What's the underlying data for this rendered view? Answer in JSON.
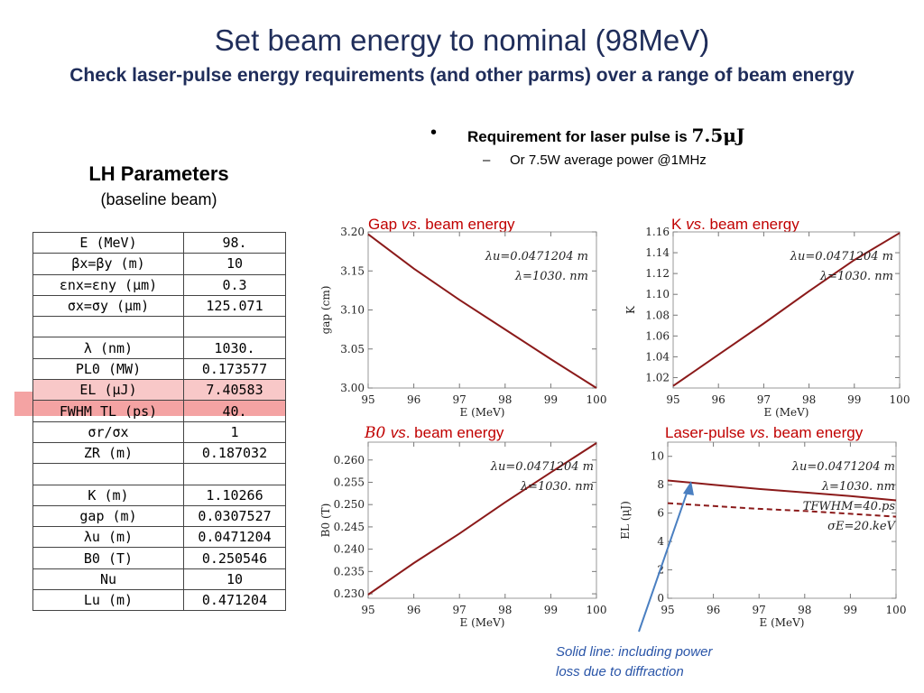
{
  "title": "Set beam energy to nominal (98MeV)",
  "subtitle": "Check laser-pulse energy requirements   (and other parms)  over a range of beam energy",
  "lh_parameters": {
    "title": "LH Parameters",
    "subtitle": "(baseline beam)",
    "rows": [
      {
        "param": "E (MeV)",
        "value": "98."
      },
      {
        "param": "βx=βy  (m)",
        "value": "10"
      },
      {
        "param": "εnx=εny  (μm)",
        "value": "0.3"
      },
      {
        "param": "σx=σy  (μm)",
        "value": "125.071"
      },
      {
        "param": "",
        "value": ""
      },
      {
        "param": "λ (nm)",
        "value": "1030."
      },
      {
        "param": "PL0 (MW)",
        "value": "0.173577"
      },
      {
        "param": "EL (μJ)",
        "value": "7.40583"
      },
      {
        "param": "FWHM TL (ps)",
        "value": "40."
      },
      {
        "param": "σr/σx",
        "value": "1"
      },
      {
        "param": "ZR (m)",
        "value": "0.187032"
      },
      {
        "param": "",
        "value": ""
      },
      {
        "param": "K (m)",
        "value": "1.10266"
      },
      {
        "param": "gap (m)",
        "value": "0.0307527"
      },
      {
        "param": "λu (m)",
        "value": "0.0471204"
      },
      {
        "param": "B0 (T)",
        "value": "0.250546"
      },
      {
        "param": "Nu",
        "value": "10"
      },
      {
        "param": "Lu (m)",
        "value": "0.471204"
      }
    ]
  },
  "bullet": {
    "main": "Requirement for laser pulse is ",
    "value": "7.5μJ",
    "sub_dash": "–",
    "sub": "Or 7.5W average power @1MHz"
  },
  "note": {
    "line1": "Solid line:  including power",
    "line2": "loss due to diffraction"
  },
  "colors": {
    "title": "#1f2d5a",
    "curve": "#8b1a1a",
    "chart_title": "#c00000",
    "arrow": "#4a7fc1",
    "highlight": "#f4a3a3"
  },
  "chart_data": [
    {
      "type": "line",
      "title_pre": "Gap ",
      "title_vs": "vs",
      "title_post": ". beam energy",
      "xlabel": "E (MeV)",
      "ylabel": "gap  (cm)",
      "xlim": [
        95,
        100
      ],
      "ylim": [
        3.0,
        3.2
      ],
      "xticks": [
        "95",
        "96",
        "97",
        "98",
        "99",
        "100"
      ],
      "yticks": [
        "3.00",
        "3.05",
        "3.10",
        "3.15",
        "3.20"
      ],
      "annotations": [
        "λu=0.0471204 m",
        "λ=1030. nm"
      ],
      "series": [
        {
          "style": "solid",
          "x": [
            95,
            96,
            97,
            98,
            99,
            100
          ],
          "y": [
            3.197,
            3.153,
            3.113,
            3.075,
            3.037,
            3.0
          ]
        }
      ]
    },
    {
      "type": "line",
      "title_pre": "K ",
      "title_vs": "vs",
      "title_post": ". beam energy",
      "xlabel": "E (MeV)",
      "ylabel": "K",
      "xlim": [
        95,
        100
      ],
      "ylim": [
        1.01,
        1.16
      ],
      "xticks": [
        "95",
        "96",
        "97",
        "98",
        "99",
        "100"
      ],
      "yticks": [
        "1.02",
        "1.04",
        "1.06",
        "1.08",
        "1.10",
        "1.12",
        "1.14",
        "1.16"
      ],
      "annotations": [
        "λu=0.0471204 m",
        "λ=1030. nm"
      ],
      "series": [
        {
          "style": "solid",
          "x": [
            95,
            96,
            97,
            98,
            99,
            100
          ],
          "y": [
            1.012,
            1.042,
            1.072,
            1.103,
            1.133,
            1.159
          ]
        }
      ]
    },
    {
      "type": "line",
      "title_pre": "B0 ",
      "title_vs": "vs",
      "title_post": ". beam energy",
      "xlabel": "E (MeV)",
      "ylabel": "B0 (T)",
      "xlim": [
        95,
        100
      ],
      "ylim": [
        0.229,
        0.264
      ],
      "xticks": [
        "95",
        "96",
        "97",
        "98",
        "99",
        "100"
      ],
      "yticks": [
        "0.230",
        "0.235",
        "0.240",
        "0.245",
        "0.250",
        "0.255",
        "0.260"
      ],
      "annotations": [
        "λu=0.0471204 m",
        "λ=1030. nm"
      ],
      "series": [
        {
          "style": "solid",
          "x": [
            95,
            96,
            97,
            98,
            99,
            100
          ],
          "y": [
            0.2298,
            0.2369,
            0.2435,
            0.2505,
            0.2572,
            0.2638
          ]
        }
      ]
    },
    {
      "type": "line",
      "title_pre": "Laser-pulse ",
      "title_vs": "vs",
      "title_post": ". beam energy",
      "xlabel": "E (MeV)",
      "ylabel": "EL (μJ)",
      "xlim": [
        95,
        100
      ],
      "ylim": [
        0,
        11
      ],
      "xticks": [
        "95",
        "96",
        "97",
        "98",
        "99",
        "100"
      ],
      "yticks": [
        "0",
        "2",
        "4",
        "6",
        "8",
        "10"
      ],
      "annotations": [
        "λu=0.0471204 m",
        "λ=1030. nm",
        "TFWHM=40.ps",
        "σE=20.keV"
      ],
      "series": [
        {
          "style": "solid",
          "x": [
            95,
            96,
            97,
            98,
            99,
            100
          ],
          "y": [
            8.3,
            8.0,
            7.7,
            7.45,
            7.2,
            6.9
          ]
        },
        {
          "style": "dashed",
          "x": [
            95,
            96,
            97,
            98,
            99,
            100
          ],
          "y": [
            6.7,
            6.5,
            6.3,
            6.15,
            5.95,
            5.75
          ]
        }
      ]
    }
  ]
}
